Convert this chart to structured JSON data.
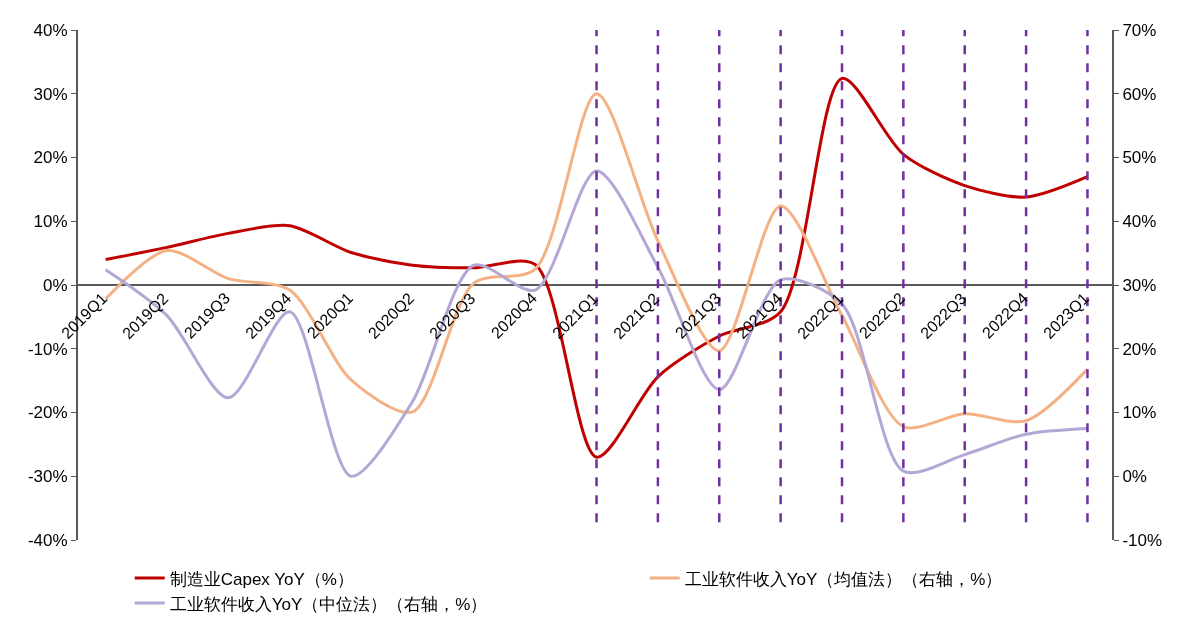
{
  "chart_data": {
    "type": "line",
    "categories": [
      "2019Q1",
      "2019Q2",
      "2019Q3",
      "2019Q4",
      "2020Q1",
      "2020Q2",
      "2020Q3",
      "2020Q4",
      "2021Q1",
      "2021Q2",
      "2021Q3",
      "2021Q4",
      "2022Q1",
      "2022Q2",
      "2022Q3",
      "2022Q4",
      "2023Q1"
    ],
    "series": [
      {
        "name": "制造业Capex YoY（%）",
        "color": "#c00000",
        "values": [
          4,
          5.9,
          8.1,
          9.3,
          5.1,
          3.1,
          2.7,
          3.2,
          -27,
          -14.4,
          -8,
          -4.2,
          32.4,
          20.5,
          15.6,
          13.8,
          17
        ]
      },
      {
        "name": "工业软件收入YoY（均值法）（右轴，%）",
        "color": "#f4b183",
        "axis": "y2",
        "values": [
          27.8,
          35.4,
          31,
          29.2,
          15.1,
          10.1,
          30.3,
          32.5,
          60,
          36.9,
          19.7,
          42.4,
          25.2,
          7.8,
          9.8,
          8.7,
          16.8
        ]
      },
      {
        "name": "工业软件收入YoY（中位法）（右轴，%）",
        "color": "#b4a7d6",
        "axis": "y2",
        "values": [
          32.4,
          25.2,
          12.3,
          25.8,
          0,
          11.7,
          33.1,
          29.2,
          47.9,
          32.8,
          13.6,
          30.8,
          27,
          0.8,
          3.4,
          6.6,
          7.5
        ]
      }
    ],
    "ylim": [
      -40,
      40
    ],
    "yticks": [
      {
        "value": -40,
        "label": "-40%"
      },
      {
        "value": -30,
        "label": "-30%"
      },
      {
        "value": -20,
        "label": "-20%"
      },
      {
        "value": -10,
        "label": "-10%"
      },
      {
        "value": 0,
        "label": "0%"
      },
      {
        "value": 10,
        "label": "10%"
      },
      {
        "value": 20,
        "label": "20%"
      },
      {
        "value": 30,
        "label": "30%"
      },
      {
        "value": 40,
        "label": "40%"
      }
    ],
    "y2lim": [
      -10,
      70
    ],
    "y2ticks": [
      {
        "value": -10,
        "label": "-10%"
      },
      {
        "value": 0,
        "label": "0%"
      },
      {
        "value": 10,
        "label": "10%"
      },
      {
        "value": 20,
        "label": "20%"
      },
      {
        "value": 30,
        "label": "30%"
      },
      {
        "value": 40,
        "label": "40%"
      },
      {
        "value": 50,
        "label": "50%"
      },
      {
        "value": 60,
        "label": "60%"
      },
      {
        "value": 70,
        "label": "70%"
      }
    ],
    "ref_lines": [
      {
        "axis": "x",
        "value": "2021Q1",
        "color": "#7030a0",
        "line_style": "dashed"
      },
      {
        "axis": "x",
        "value": "2021Q2",
        "color": "#7030a0",
        "line_style": "dashed"
      },
      {
        "axis": "x",
        "value": "2021Q3",
        "color": "#7030a0",
        "line_style": "dashed"
      },
      {
        "axis": "x",
        "value": "2021Q4",
        "color": "#7030a0",
        "line_style": "dashed"
      },
      {
        "axis": "x",
        "value": "2022Q1",
        "color": "#7030a0",
        "line_style": "dashed"
      },
      {
        "axis": "x",
        "value": "2022Q2",
        "color": "#7030a0",
        "line_style": "dashed"
      },
      {
        "axis": "x",
        "value": "2022Q3",
        "color": "#7030a0",
        "line_style": "dashed"
      },
      {
        "axis": "x",
        "value": "2022Q4",
        "color": "#7030a0",
        "line_style": "dashed"
      },
      {
        "axis": "x",
        "value": "2023Q1",
        "color": "#7030a0",
        "line_style": "dashed"
      }
    ],
    "legend": "bottom",
    "marker": "none",
    "line_style": "solid"
  }
}
